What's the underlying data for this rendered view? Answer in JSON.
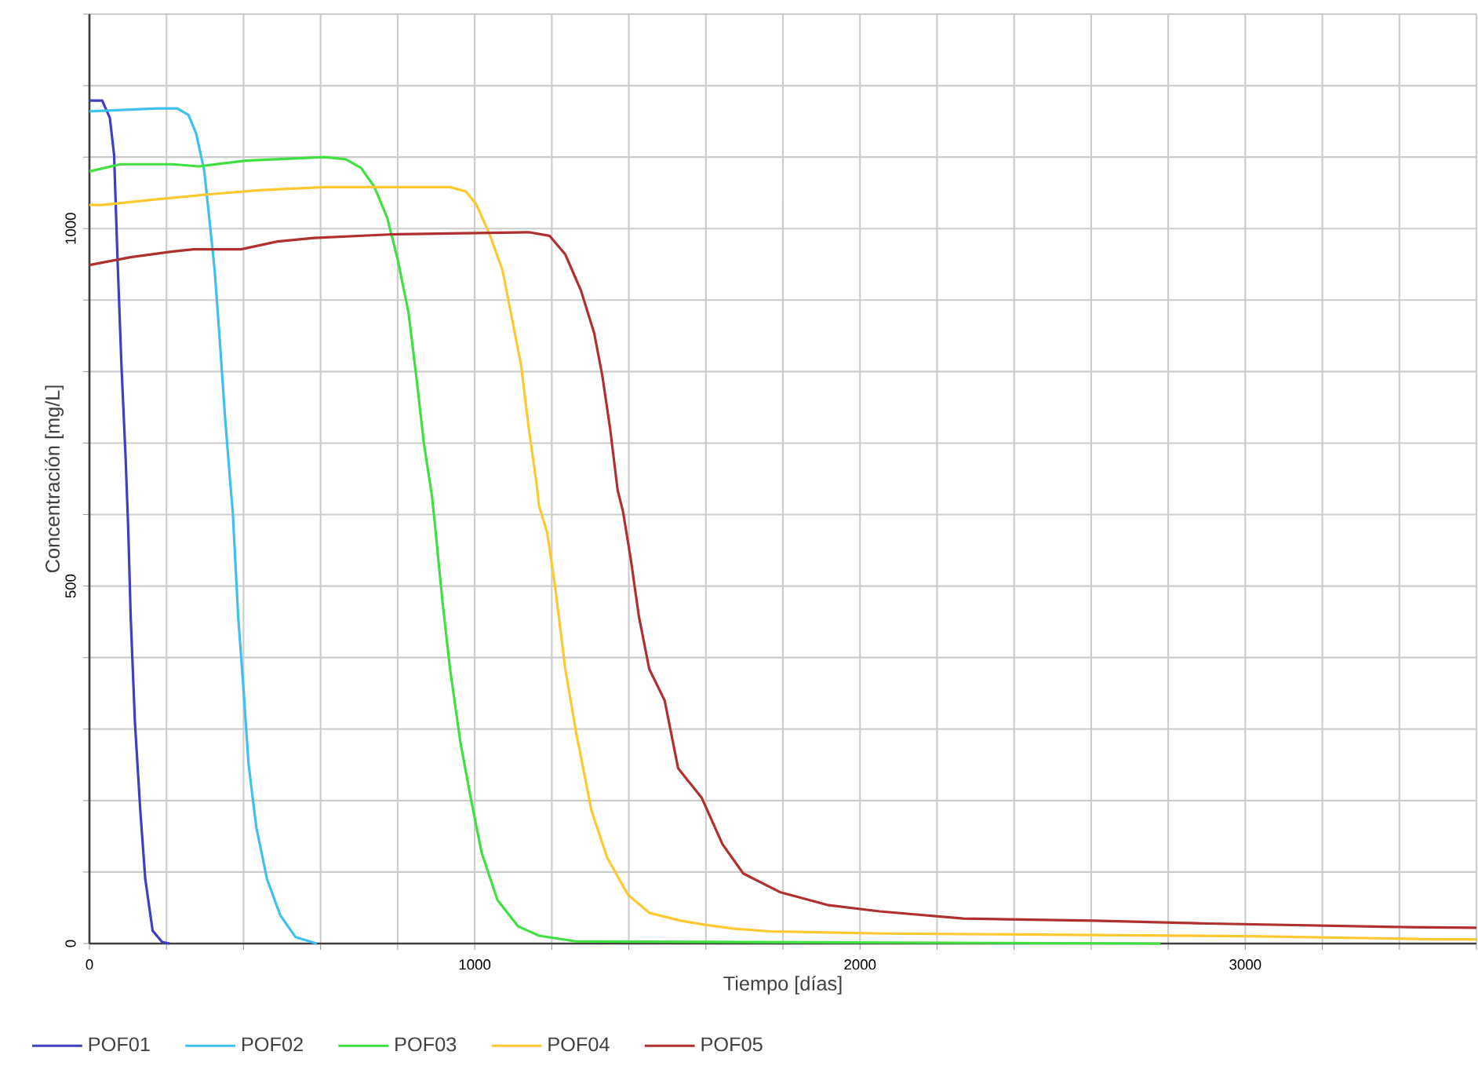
{
  "chart_data": {
    "type": "line",
    "xlabel": "Tiempo [días]",
    "ylabel": "Concentración [mg/L]",
    "xlim": [
      0,
      3600
    ],
    "ylim": [
      0,
      1300
    ],
    "xticks": [
      0,
      {
        "value": 200,
        "label": null
      },
      {
        "value": 400,
        "label": null
      },
      {
        "value": 600,
        "label": null
      },
      {
        "value": 800,
        "label": null
      },
      1000,
      {
        "value": 1200,
        "label": null
      },
      {
        "value": 1400,
        "label": null
      },
      {
        "value": 1600,
        "label": null
      },
      {
        "value": 1800,
        "label": null
      },
      2000,
      {
        "value": 2200,
        "label": null
      },
      {
        "value": 2400,
        "label": null
      },
      {
        "value": 2600,
        "label": null
      },
      {
        "value": 2800,
        "label": null
      },
      3000,
      {
        "value": 3200,
        "label": null
      },
      {
        "value": 3400,
        "label": null
      },
      {
        "value": 3600,
        "label": null
      }
    ],
    "yticks": [
      0,
      {
        "value": 100,
        "label": null
      },
      {
        "value": 200,
        "label": null
      },
      {
        "value": 300,
        "label": null
      },
      {
        "value": 400,
        "label": null
      },
      500,
      {
        "value": 600,
        "label": null
      },
      {
        "value": 700,
        "label": null
      },
      {
        "value": 800,
        "label": null
      },
      {
        "value": 900,
        "label": null
      },
      1000,
      {
        "value": 1100,
        "label": null
      },
      {
        "value": 1200,
        "label": null
      },
      {
        "value": 1300,
        "label": null
      }
    ],
    "grid": true,
    "legend": "bottom",
    "series": [
      {
        "name": "POF01",
        "color": "#3f3fbf",
        "x": [
          0,
          33,
          53,
          64,
          73,
          83,
          94,
          101,
          107,
          118,
          132,
          145,
          164,
          189,
          208
        ],
        "values": [
          1179,
          1179,
          1155,
          1103,
          956,
          810,
          678,
          575,
          458,
          310,
          186,
          90,
          18,
          2,
          0
        ]
      },
      {
        "name": "POF02",
        "color": "#40c0f0",
        "x": [
          0,
          175,
          228,
          257,
          277,
          298,
          311,
          325,
          338,
          352,
          366,
          372,
          386,
          400,
          413,
          433,
          461,
          495,
          535,
          590
        ],
        "values": [
          1164,
          1168,
          1168,
          1159,
          1133,
          1081,
          1015,
          942,
          846,
          736,
          641,
          604,
          458,
          355,
          251,
          163,
          90,
          40,
          9,
          0
        ]
      },
      {
        "name": "POF03",
        "color": "#40e040",
        "x": [
          0,
          80,
          216,
          284,
          406,
          610,
          665,
          705,
          739,
          773,
          800,
          828,
          848,
          868,
          889,
          896,
          916,
          936,
          963,
          991,
          1018,
          1059,
          1113,
          1167,
          1263,
          2780
        ],
        "values": [
          1080,
          1090,
          1090,
          1087,
          1095,
          1100,
          1097,
          1085,
          1059,
          1015,
          957,
          883,
          795,
          700,
          626,
          590,
          480,
          384,
          281,
          200,
          127,
          61,
          24,
          11,
          3,
          0
        ]
      },
      {
        "name": "POF04",
        "color": "#ffc830",
        "x": [
          0,
          33,
          175,
          311,
          447,
          610,
          936,
          977,
          1004,
          1038,
          1072,
          1099,
          1120,
          1140,
          1161,
          1167,
          1188,
          1208,
          1235,
          1263,
          1303,
          1344,
          1398,
          1453,
          1534,
          1602,
          1670,
          1765,
          2064,
          2608,
          3042,
          3491,
          3600
        ],
        "values": [
          1033,
          1033,
          1041,
          1048,
          1054,
          1058,
          1058,
          1052,
          1034,
          993,
          942,
          868,
          810,
          722,
          641,
          612,
          575,
          502,
          384,
          296,
          186,
          120,
          68,
          43,
          32,
          26,
          21,
          17,
          14,
          12,
          10,
          6,
          6
        ]
      },
      {
        "name": "POF05",
        "color": "#b03030",
        "x": [
          0,
          107,
          216,
          270,
          393,
          488,
          583,
          787,
          1140,
          1194,
          1235,
          1276,
          1310,
          1331,
          1351,
          1371,
          1385,
          1405,
          1426,
          1453,
          1493,
          1528,
          1589,
          1643,
          1697,
          1792,
          1915,
          2051,
          2268,
          2608,
          2907,
          3423,
          3600
        ],
        "values": [
          949,
          960,
          968,
          971,
          971,
          982,
          987,
          992,
          995,
          990,
          964,
          913,
          854,
          795,
          722,
          634,
          604,
          538,
          458,
          384,
          340,
          245,
          204,
          139,
          98,
          72,
          54,
          45,
          35,
          32,
          28,
          23,
          22
        ]
      }
    ]
  }
}
